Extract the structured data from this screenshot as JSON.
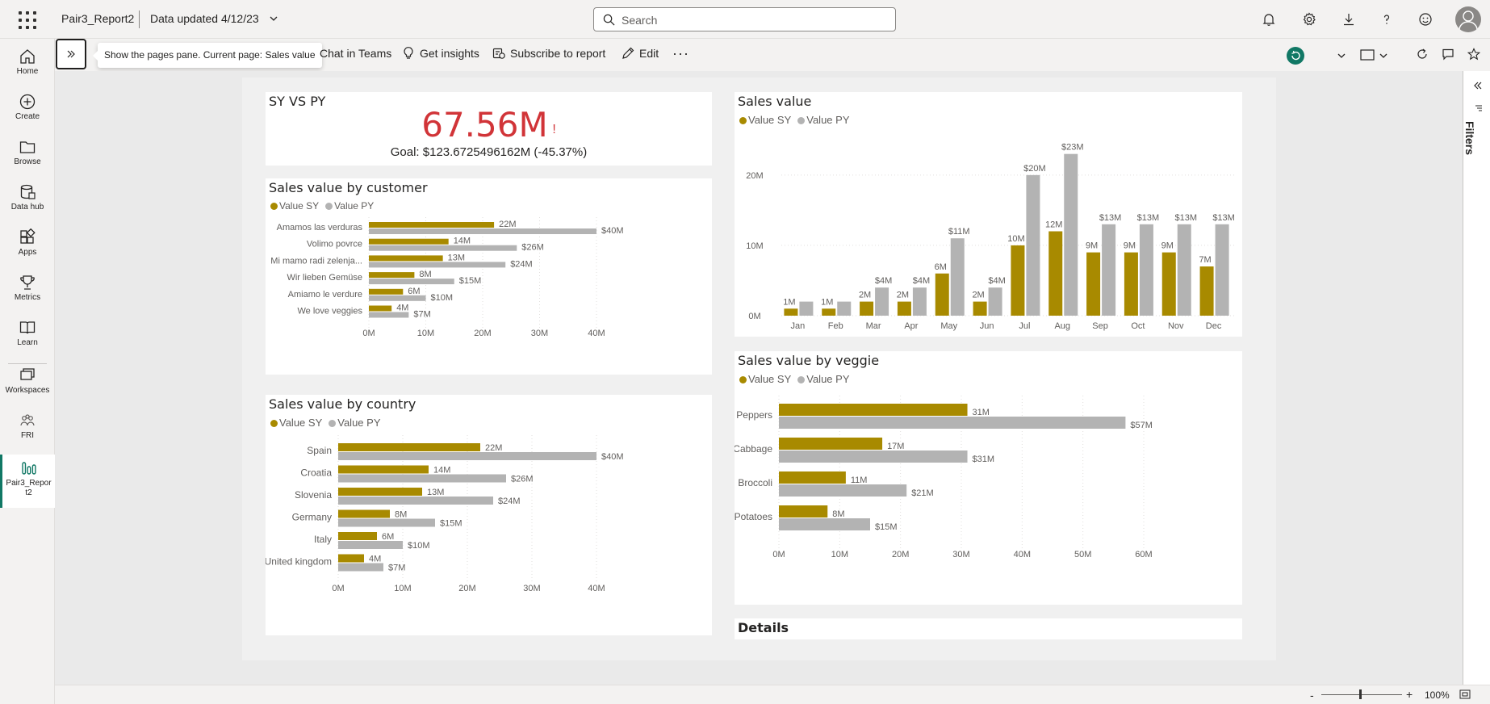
{
  "header": {
    "report_name": "Pair3_Report2",
    "data_updated": "Data updated 4/12/23",
    "search_placeholder": "Search",
    "icons": [
      "notifications-icon",
      "settings-icon",
      "download-icon",
      "help-icon",
      "feedback-icon",
      "account-icon"
    ]
  },
  "nav": [
    {
      "label": "Home",
      "icon": "home-icon"
    },
    {
      "label": "Create",
      "icon": "create-icon"
    },
    {
      "label": "Browse",
      "icon": "browse-icon"
    },
    {
      "label": "Data hub",
      "icon": "data-hub-icon"
    },
    {
      "label": "Apps",
      "icon": "apps-icon"
    },
    {
      "label": "Metrics",
      "icon": "metrics-icon"
    },
    {
      "label": "Learn",
      "icon": "learn-icon"
    },
    {
      "label": "Workspaces",
      "icon": "workspaces-icon"
    },
    {
      "label": "FRI",
      "icon": "workspace-fri-icon"
    },
    {
      "label": "Pair3_Repor t2",
      "icon": "report-icon"
    }
  ],
  "actions": {
    "tooltip": "Show the pages pane. Current page: Sales value",
    "chat_in_teams": "Chat in Teams",
    "get_insights": "Get insights",
    "subscribe": "Subscribe to report",
    "edit": "Edit",
    "more": "···"
  },
  "filters_label": "Filters",
  "zoom": "100%",
  "colors": {
    "sy": "#a88a00",
    "py": "#b3b3b3",
    "kpi": "#d13438",
    "accent": "#117865"
  },
  "kpi": {
    "title": "SY VS PY",
    "value": "67.56M",
    "indicator": "!",
    "goal": "Goal: $123.6725496162M (-45.37%)"
  },
  "legend": {
    "sy": "Value SY",
    "py": "Value PY"
  },
  "details_title": "Details",
  "chart_data": [
    {
      "id": "customer",
      "type": "bar",
      "orientation": "horizontal",
      "title": "Sales value by customer",
      "categories": [
        "Amamos las verduras",
        "Volimo povrce",
        "Mi mamo radi zelenja...",
        "Wir lieben Gemüse",
        "Amiamo le verdure",
        "We love veggies"
      ],
      "series": [
        {
          "name": "Value SY",
          "values": [
            22,
            14,
            13,
            8,
            6,
            4
          ],
          "labels": [
            "22M",
            "14M",
            "13M",
            "8M",
            "6M",
            "4M"
          ]
        },
        {
          "name": "Value PY",
          "values": [
            40,
            26,
            24,
            15,
            10,
            7
          ],
          "labels": [
            "$40M",
            "$26M",
            "$24M",
            "$15M",
            "$10M",
            "$7M"
          ]
        }
      ],
      "xticks": [
        "0M",
        "10M",
        "20M",
        "30M",
        "40M"
      ],
      "xlim": [
        0,
        40
      ]
    },
    {
      "id": "country",
      "type": "bar",
      "orientation": "horizontal",
      "title": "Sales value by country",
      "categories": [
        "Spain",
        "Croatia",
        "Slovenia",
        "Germany",
        "Italy",
        "United kingdom"
      ],
      "series": [
        {
          "name": "Value SY",
          "values": [
            22,
            14,
            13,
            8,
            6,
            4
          ],
          "labels": [
            "22M",
            "14M",
            "13M",
            "8M",
            "6M",
            "4M"
          ]
        },
        {
          "name": "Value PY",
          "values": [
            40,
            26,
            24,
            15,
            10,
            7
          ],
          "labels": [
            "$40M",
            "$26M",
            "$24M",
            "$15M",
            "$10M",
            "$7M"
          ]
        }
      ],
      "xticks": [
        "0M",
        "10M",
        "20M",
        "30M",
        "40M"
      ],
      "xlim": [
        0,
        40
      ]
    },
    {
      "id": "month",
      "type": "bar",
      "orientation": "vertical",
      "title": "Sales value",
      "categories": [
        "Jan",
        "Feb",
        "Mar",
        "Apr",
        "May",
        "Jun",
        "Jul",
        "Aug",
        "Sep",
        "Oct",
        "Nov",
        "Dec"
      ],
      "series": [
        {
          "name": "Value SY",
          "values": [
            1,
            1,
            2,
            2,
            6,
            2,
            10,
            12,
            9,
            9,
            9,
            7
          ],
          "labels": [
            "1M",
            "1M",
            "2M",
            "2M",
            "6M",
            "2M",
            "10M",
            "12M",
            "9M",
            "9M",
            "9M",
            "7M"
          ]
        },
        {
          "name": "Value PY",
          "values": [
            2,
            2,
            4,
            4,
            11,
            4,
            20,
            23,
            13,
            13,
            13,
            13
          ],
          "labels": [
            "",
            "",
            "$4M",
            "$4M",
            "$11M",
            "$4M",
            "$20M",
            "$23M",
            "$13M",
            "$13M",
            "$13M",
            "$13M"
          ]
        }
      ],
      "yticks": [
        "0M",
        "10M",
        "20M"
      ],
      "ylim": [
        0,
        24
      ]
    },
    {
      "id": "veggie",
      "type": "bar",
      "orientation": "horizontal",
      "title": "Sales value by veggie",
      "categories": [
        "Peppers",
        "Cabbage",
        "Broccoli",
        "Potatoes"
      ],
      "series": [
        {
          "name": "Value SY",
          "values": [
            31,
            17,
            11,
            8
          ],
          "labels": [
            "31M",
            "17M",
            "11M",
            "8M"
          ]
        },
        {
          "name": "Value PY",
          "values": [
            57,
            31,
            21,
            15
          ],
          "labels": [
            "$57M",
            "$31M",
            "$21M",
            "$15M"
          ]
        }
      ],
      "xticks": [
        "0M",
        "10M",
        "20M",
        "30M",
        "40M",
        "50M",
        "60M"
      ],
      "xlim": [
        0,
        60
      ]
    }
  ]
}
